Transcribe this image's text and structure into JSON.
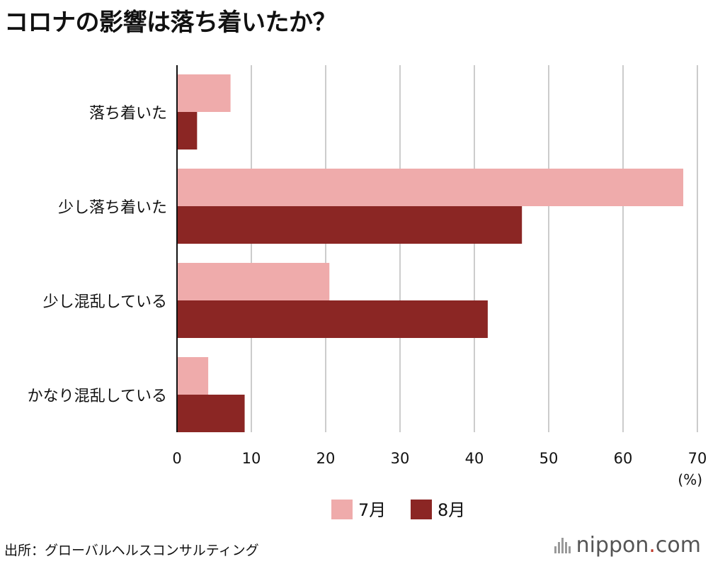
{
  "title": "コロナの影響は落ち着いたか？",
  "source": "出所：グローバルヘルスコンサルティング",
  "brand": {
    "name": "nippon",
    "dot": ".",
    "suffix": "com"
  },
  "chart_data": {
    "type": "bar",
    "orientation": "horizontal",
    "categories": [
      "落ち着いた",
      "少し落ち着いた",
      "少し混乱している",
      "かなり混乱している"
    ],
    "series": [
      {
        "name": "7月",
        "values": [
          7.2,
          68.1,
          20.5,
          4.2
        ],
        "color": "#efabab"
      },
      {
        "name": "8月",
        "values": [
          2.7,
          46.4,
          41.8,
          9.1
        ],
        "color": "#8b2624"
      }
    ],
    "x_ticks": [
      0,
      10,
      20,
      30,
      40,
      50,
      60,
      70
    ],
    "xlim": [
      0,
      70
    ],
    "unit_label": "(%)",
    "grid": true,
    "legend_position": "bottom"
  }
}
